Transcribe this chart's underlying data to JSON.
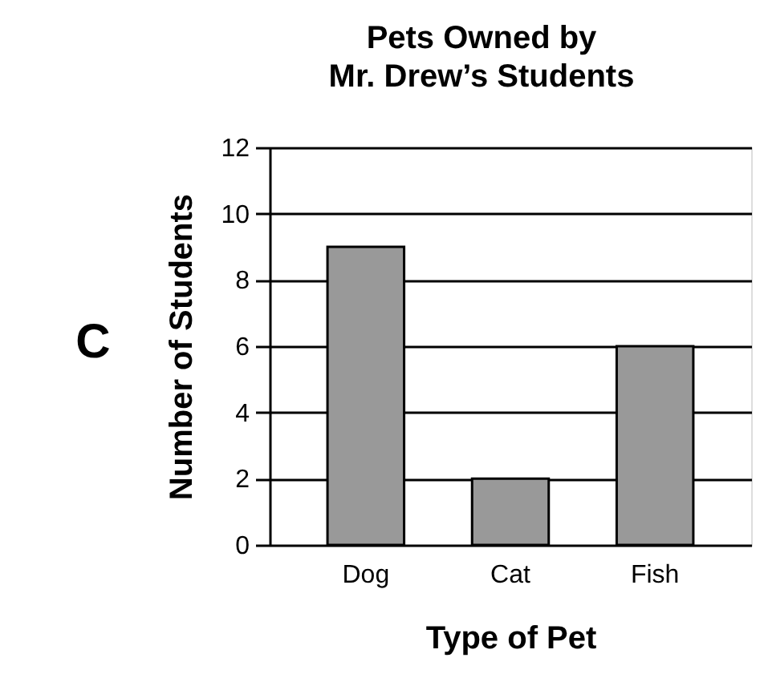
{
  "chart_data": {
    "type": "bar",
    "title": "Pets Owned by\nMr. Drew’s Students",
    "xlabel": "Type of Pet",
    "ylabel": "Number of Students",
    "categories": [
      "Dog",
      "Cat",
      "Fish"
    ],
    "values": [
      9,
      2,
      6
    ],
    "color": "#999999",
    "ylim": [
      0,
      12
    ],
    "yticks": [
      0,
      2,
      4,
      6,
      8,
      10,
      12
    ],
    "grid": "y",
    "annotations": [
      "C"
    ]
  }
}
